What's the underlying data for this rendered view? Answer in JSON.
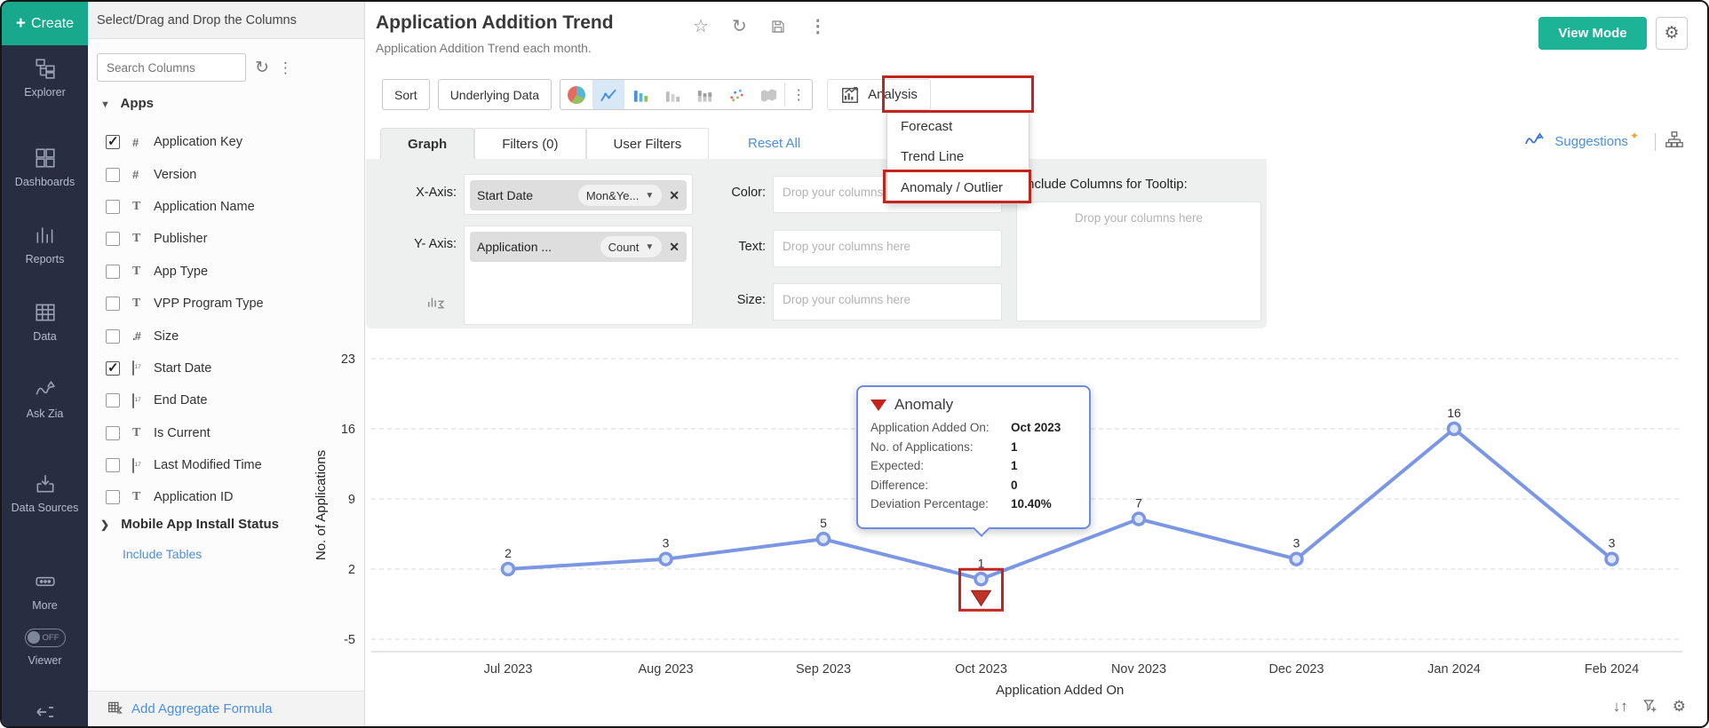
{
  "colors": {
    "accent_teal": "#18a98c",
    "link_blue": "#4a8fe2",
    "line_blue": "#7b97e4",
    "anomaly_red": "#c2251e",
    "selected_icon_bg": "#d9e8f6",
    "sidebar_bg": "#272e42"
  },
  "sidebar": {
    "create_label": "Create",
    "items": [
      {
        "id": "explorer",
        "label": "Explorer"
      },
      {
        "id": "dashboards",
        "label": "Dashboards"
      },
      {
        "id": "reports",
        "label": "Reports"
      },
      {
        "id": "data",
        "label": "Data"
      },
      {
        "id": "ask-zia",
        "label": "Ask Zia"
      },
      {
        "id": "data-sources",
        "label": "Data Sources"
      },
      {
        "id": "more",
        "label": "More"
      }
    ],
    "viewer_label": "Viewer",
    "viewer_toggle": "OFF"
  },
  "columns_panel": {
    "header": "Select/Drag and Drop the Columns",
    "search_placeholder": "Search Columns",
    "group": "Apps",
    "fields": [
      {
        "label": "Application Key",
        "type": "number",
        "checked": true
      },
      {
        "label": "Version",
        "type": "number",
        "checked": false
      },
      {
        "label": "Application Name",
        "type": "text",
        "checked": false
      },
      {
        "label": "Publisher",
        "type": "text",
        "checked": false
      },
      {
        "label": "App Type",
        "type": "text",
        "checked": false
      },
      {
        "label": "VPP Program Type",
        "type": "text",
        "checked": false
      },
      {
        "label": "Size",
        "type": "decimal",
        "checked": false
      },
      {
        "label": "Start Date",
        "type": "date",
        "checked": true
      },
      {
        "label": "End Date",
        "type": "date",
        "checked": false
      },
      {
        "label": "Is Current",
        "type": "text",
        "checked": false
      },
      {
        "label": "Last Modified Time",
        "type": "date",
        "checked": false
      },
      {
        "label": "Application ID",
        "type": "text",
        "checked": false
      }
    ],
    "expand_item": "Mobile App Install Status",
    "include_tables": "Include Tables",
    "add_aggregate": "Add Aggregate Formula"
  },
  "header": {
    "title": "Application Addition Trend",
    "subtitle": "Application Addition Trend each month.",
    "icons": [
      "star",
      "refresh",
      "save",
      "more"
    ],
    "view_mode": "View Mode",
    "settings_icon": "gear"
  },
  "toolbar": {
    "sort": "Sort",
    "underlying_data": "Underlying Data",
    "chart_type_icons": [
      "pie",
      "line",
      "bar",
      "bar-gray",
      "stacked-bar",
      "scatter",
      "map",
      "more"
    ],
    "selected_chart_type": "line",
    "analysis": "Analysis"
  },
  "analysis_menu": {
    "items": [
      "Forecast",
      "Trend Line",
      "Anomaly / Outlier"
    ],
    "highlighted": "Anomaly / Outlier"
  },
  "tabs": {
    "graph": "Graph",
    "filters": "Filters  (0)",
    "user_filters": "User Filters",
    "reset_all": "Reset All",
    "active": "Graph"
  },
  "wells": {
    "x_label": "X-Axis:",
    "x_field": "Start Date",
    "x_aggregation": "Mon&Ye...",
    "y_label": "Y- Axis:",
    "y_field": "Application ...",
    "y_aggregation": "Count",
    "color_label": "Color:",
    "text_label": "Text:",
    "size_label": "Size:",
    "drop_placeholder": "Drop your columns here",
    "tooltip_columns_label": "Include Columns for Tooltip:"
  },
  "suggestions": {
    "label": "Suggestions",
    "icons": [
      "zia",
      "sparkle",
      "related-views"
    ]
  },
  "tooltip": {
    "title": "Anomaly",
    "rows": [
      {
        "label": "Application Added On:",
        "value": "Oct 2023"
      },
      {
        "label": "No. of Applications:",
        "value": "1"
      },
      {
        "label": "Expected:",
        "value": "1"
      },
      {
        "label": "Difference:",
        "value": "0"
      },
      {
        "label": "Deviation Percentage:",
        "value": "10.40%"
      }
    ]
  },
  "bottom_toolbar": {
    "icons": [
      "sort",
      "add-filter",
      "settings"
    ]
  },
  "chart_data": {
    "type": "line",
    "categories": [
      "Jul 2023",
      "Aug 2023",
      "Sep 2023",
      "Oct 2023",
      "Nov 2023",
      "Dec 2023",
      "Jan 2024",
      "Feb 2024"
    ],
    "values": [
      2,
      3,
      5,
      1,
      7,
      3,
      16,
      3
    ],
    "data_labels": [
      "2",
      "3",
      "5",
      "1",
      "7",
      "3",
      "16",
      "3"
    ],
    "xlabel": "Application Added On",
    "ylabel": "No. of Applications",
    "yticks": [
      23,
      16,
      9,
      2,
      -5
    ],
    "ylim": [
      -5,
      23
    ],
    "grid": "dashed-horizontal",
    "legend": "none",
    "line_color": "#7b97e4",
    "anomaly": {
      "category": "Oct 2023",
      "value": 1,
      "expected": 1,
      "difference": 0,
      "deviation_percentage": "10.40%",
      "marker": "red-triangle-down"
    }
  }
}
